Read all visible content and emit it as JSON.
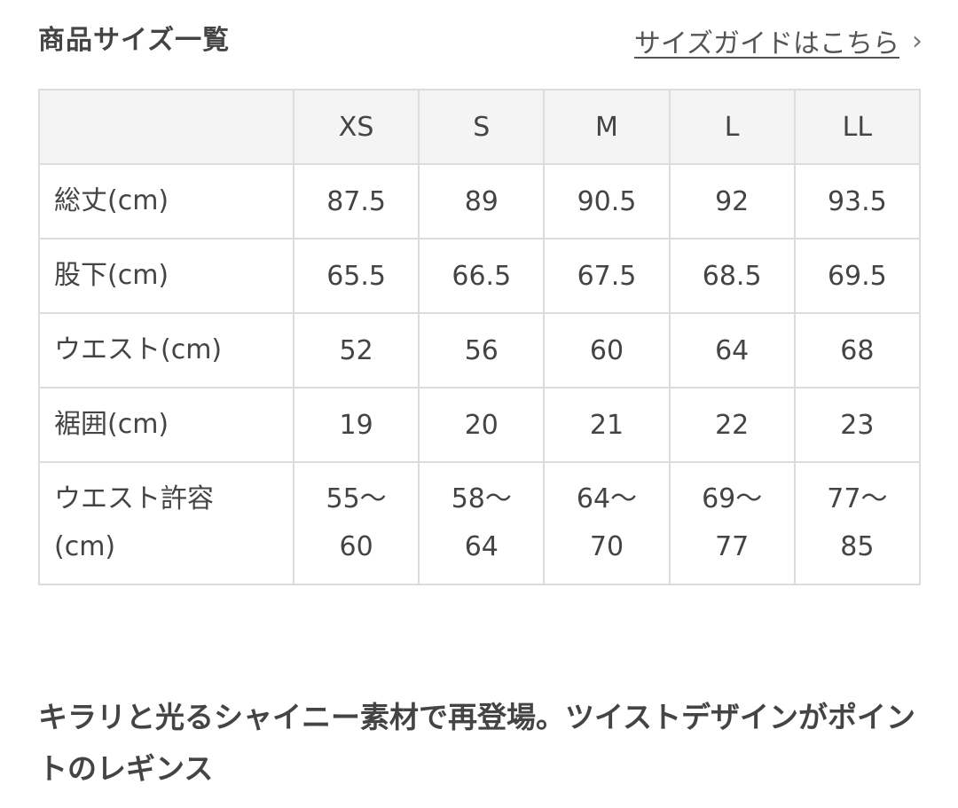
{
  "header": {
    "title": "商品サイズ一覧",
    "size_guide_link": "サイズガイドはこちら",
    "chevron": "›"
  },
  "table": {
    "columns": [
      "XS",
      "S",
      "M",
      "L",
      "LL"
    ],
    "rows": [
      {
        "label": "総丈(cm)",
        "values": [
          "87.5",
          "89",
          "90.5",
          "92",
          "93.5"
        ]
      },
      {
        "label": "股下(cm)",
        "values": [
          "65.5",
          "66.5",
          "67.5",
          "68.5",
          "69.5"
        ]
      },
      {
        "label": "ウエスト(cm)",
        "values": [
          "52",
          "56",
          "60",
          "64",
          "68"
        ]
      },
      {
        "label": "裾囲(cm)",
        "values": [
          "19",
          "20",
          "21",
          "22",
          "23"
        ]
      },
      {
        "label": "ウエスト許容(cm)",
        "label_lines": [
          "ウエスト許容",
          "(cm)"
        ],
        "values": [
          [
            "55〜",
            "60"
          ],
          [
            "58〜",
            "64"
          ],
          [
            "64〜",
            "70"
          ],
          [
            "69〜",
            "77"
          ],
          [
            "77〜",
            "85"
          ]
        ]
      }
    ]
  },
  "description": "キラリと光るシャイニー素材で再登場。ツイストデザインがポイントのレギンス"
}
